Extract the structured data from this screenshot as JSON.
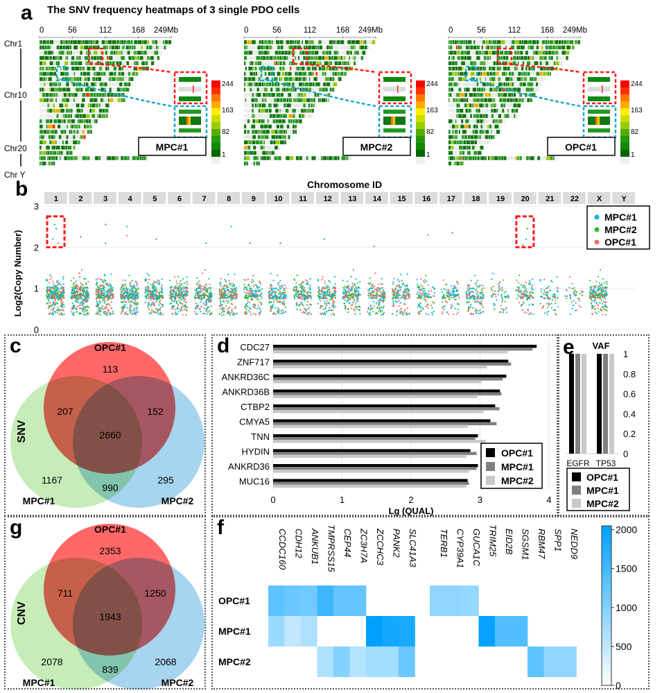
{
  "figure": {
    "panel_letters": [
      "a",
      "b",
      "c",
      "d",
      "e",
      "f",
      "g"
    ]
  },
  "chart_data": [
    {
      "id": "a",
      "type": "heatmap",
      "title": "The SNV frequency heatmaps of 3 single PDO cells",
      "x_ticks": [
        "0",
        "56",
        "112",
        "168",
        "249Mb"
      ],
      "x_range": [
        0,
        249
      ],
      "x_unit": "Mb",
      "row_labels": [
        "Chr1",
        "Chr10",
        "Chr20",
        "Chr Y"
      ],
      "n_rows": 24,
      "colorbar": {
        "ticks": [
          "244",
          "163",
          "82",
          "1"
        ],
        "range": [
          1,
          244
        ],
        "colors": [
          "#ff0000",
          "#ff3300",
          "#ff7700",
          "#ffaa00",
          "#ffee00",
          "#ccdd00",
          "#99cc00",
          "#55aa00",
          "#229911",
          "#118800",
          "#006600",
          "#f0f0f0"
        ]
      },
      "panels": [
        {
          "label": "MPC#1"
        },
        {
          "label": "MPC#2"
        },
        {
          "label": "OPC#1"
        }
      ],
      "highlight_colors": {
        "red": "#ff1a1a",
        "cyan": "#1aa7c8"
      }
    },
    {
      "id": "b",
      "type": "scatter",
      "title": "Chromosome ID",
      "ylabel": "Log2(Copy Number)",
      "ylim": [
        0,
        3
      ],
      "y_ticks": [
        "0",
        "1",
        "2",
        "3"
      ],
      "categories": [
        "1",
        "2",
        "3",
        "4",
        "5",
        "6",
        "7",
        "8",
        "9",
        "10",
        "11",
        "12",
        "13",
        "14",
        "15",
        "16",
        "17",
        "18",
        "19",
        "20",
        "21",
        "22",
        "X",
        "Y"
      ],
      "series": [
        {
          "name": "MPC#1",
          "color": "#00b7eb"
        },
        {
          "name": "MPC#2",
          "color": "#33bb33"
        },
        {
          "name": "OPC#1",
          "color": "#f26b6b"
        }
      ],
      "density_per_chromosome": [
        1.0,
        0.95,
        0.85,
        0.85,
        0.75,
        0.75,
        0.65,
        0.7,
        0.55,
        0.55,
        0.55,
        0.6,
        0.55,
        0.55,
        0.5,
        0.35,
        0.35,
        0.45,
        0.2,
        0.35,
        0.25,
        0.15,
        0.7,
        0.0
      ],
      "median_log2cn": 0.75,
      "outliers": [
        {
          "chrom": "1",
          "y": 2.55,
          "s": 0
        },
        {
          "chrom": "1",
          "y": 2.45,
          "s": 1
        },
        {
          "chrom": "1",
          "y": 2.2,
          "s": 0
        },
        {
          "chrom": "1",
          "y": 2.1,
          "s": 2
        },
        {
          "chrom": "2",
          "y": 2.25,
          "s": 1
        },
        {
          "chrom": "3",
          "y": 2.55,
          "s": 1
        },
        {
          "chrom": "3",
          "y": 2.1,
          "s": 0
        },
        {
          "chrom": "4",
          "y": 2.5,
          "s": 0
        },
        {
          "chrom": "4",
          "y": 2.28,
          "s": 2
        },
        {
          "chrom": "5",
          "y": 2.2,
          "s": 1
        },
        {
          "chrom": "7",
          "y": 2.1,
          "s": 0
        },
        {
          "chrom": "8",
          "y": 2.5,
          "s": 0
        },
        {
          "chrom": "9",
          "y": 2.1,
          "s": 1
        },
        {
          "chrom": "10",
          "y": 2.1,
          "s": 1
        },
        {
          "chrom": "12",
          "y": 2.2,
          "s": 0
        },
        {
          "chrom": "14",
          "y": 2.02,
          "s": 1
        },
        {
          "chrom": "16",
          "y": 2.3,
          "s": 2
        },
        {
          "chrom": "17",
          "y": 2.35,
          "s": 1
        },
        {
          "chrom": "20",
          "y": 2.45,
          "s": 1
        },
        {
          "chrom": "20",
          "y": 2.2,
          "s": 0
        },
        {
          "chrom": "20",
          "y": 2.05,
          "s": 1
        }
      ],
      "highlights": [
        {
          "chrom": "1",
          "y_range": [
            2.0,
            2.75
          ]
        },
        {
          "chrom": "20",
          "y_range": [
            2.0,
            2.75
          ]
        }
      ],
      "legend": "top-right",
      "grid": true
    },
    {
      "id": "c",
      "type": "venn",
      "side_label": "SNV",
      "sets": [
        "OPC#1",
        "MPC#1",
        "MPC#2"
      ],
      "set_colors": {
        "OPC#1": "#ff4d4d",
        "MPC#1": "#b3e6a0",
        "MPC#2": "#8ac6e8"
      },
      "regions": {
        "OPC#1_only": 113,
        "MPC#1_only": 1167,
        "MPC#2_only": 295,
        "OPC#1_MPC#1": 207,
        "OPC#1_MPC#2": 152,
        "MPC#1_MPC#2": 990,
        "all": 2660
      }
    },
    {
      "id": "d",
      "type": "bar",
      "orientation": "horizontal",
      "xlabel": "Lg (QUAL)",
      "xlim": [
        0,
        4
      ],
      "x_ticks": [
        "0",
        "1",
        "2",
        "3",
        "4"
      ],
      "categories": [
        "CDC27",
        "ZNF717",
        "ANKRD36C",
        "ANKRD36B",
        "CTBP2",
        "CMYA5",
        "TNN",
        "HYDIN",
        "ANKRD36",
        "MUC16"
      ],
      "series": [
        {
          "name": "OPC#1",
          "color": "#000000",
          "values": [
            3.82,
            3.41,
            3.38,
            3.29,
            3.22,
            3.15,
            2.97,
            2.86,
            2.97,
            2.82
          ]
        },
        {
          "name": "MPC#1",
          "color": "#808080",
          "values": [
            3.76,
            3.45,
            3.33,
            3.31,
            3.28,
            3.24,
            2.93,
            2.95,
            2.95,
            2.84
          ]
        },
        {
          "name": "MPC#2",
          "color": "#c8c8c8",
          "values": [
            3.4,
            3.1,
            3.02,
            2.96,
            3.05,
            2.82,
            3.08,
            2.8,
            2.84,
            2.8
          ]
        }
      ],
      "legend": "bottom-right",
      "grid": true
    },
    {
      "id": "e",
      "type": "bar",
      "title": "VAF",
      "ylim": [
        0,
        1
      ],
      "y_ticks": [
        "0",
        "0.2",
        "0.4",
        "0.6",
        "0.8",
        "1"
      ],
      "categories": [
        "EGFR",
        "TP53"
      ],
      "series": [
        {
          "name": "OPC#1",
          "color": "#000000",
          "values": [
            1,
            1
          ]
        },
        {
          "name": "MPC#1",
          "color": "#808080",
          "values": [
            1,
            1
          ]
        },
        {
          "name": "MPC#2",
          "color": "#c8c8c8",
          "values": [
            1,
            1
          ]
        }
      ],
      "legend": "bottom"
    },
    {
      "id": "f",
      "type": "heatmap",
      "columns": [
        "CCDC160",
        "CDH12",
        "ANKUB1",
        "TMPRSS15",
        "CEP44",
        "ZC3H7A",
        "ZCCHC3",
        "PANK2",
        "SLC41A3",
        "TERB1",
        "CYP39A1",
        "GUCA1C",
        "TRIM25",
        "EID2B",
        "SGSM1",
        "RBM47",
        "SPP1",
        "NEDD9"
      ],
      "column_groups": [
        9,
        9
      ],
      "rows": [
        "OPC#1",
        "MPC#1",
        "MPC#2"
      ],
      "values": [
        [
          1300,
          1200,
          1150,
          1550,
          1250,
          1250,
          0,
          0,
          0,
          900,
          900,
          850,
          0,
          0,
          0,
          0,
          0,
          0
        ],
        [
          800,
          500,
          650,
          0,
          0,
          0,
          2050,
          1900,
          1850,
          0,
          0,
          0,
          2000,
          1400,
          1400,
          0,
          0,
          0
        ],
        [
          0,
          0,
          0,
          650,
          1000,
          600,
          750,
          750,
          1200,
          0,
          0,
          0,
          0,
          0,
          0,
          1300,
          900,
          900
        ]
      ],
      "colorbar": {
        "range": [
          0,
          2050
        ],
        "ticks": [
          "2000",
          "1500",
          "1000",
          "500",
          "0"
        ],
        "low": "#ffffff",
        "high": "#00a0ff"
      }
    },
    {
      "id": "g",
      "type": "venn",
      "side_label": "CNV",
      "sets": [
        "OPC#1",
        "MPC#1",
        "MPC#2"
      ],
      "set_colors": {
        "OPC#1": "#ff4d4d",
        "MPC#1": "#b3e6a0",
        "MPC#2": "#8ac6e8"
      },
      "regions": {
        "OPC#1_only": 2353,
        "MPC#1_only": 2078,
        "MPC#2_only": 2068,
        "OPC#1_MPC#1": 711,
        "OPC#1_MPC#2": 1250,
        "MPC#1_MPC#2": 839,
        "all": 1943
      }
    }
  ]
}
